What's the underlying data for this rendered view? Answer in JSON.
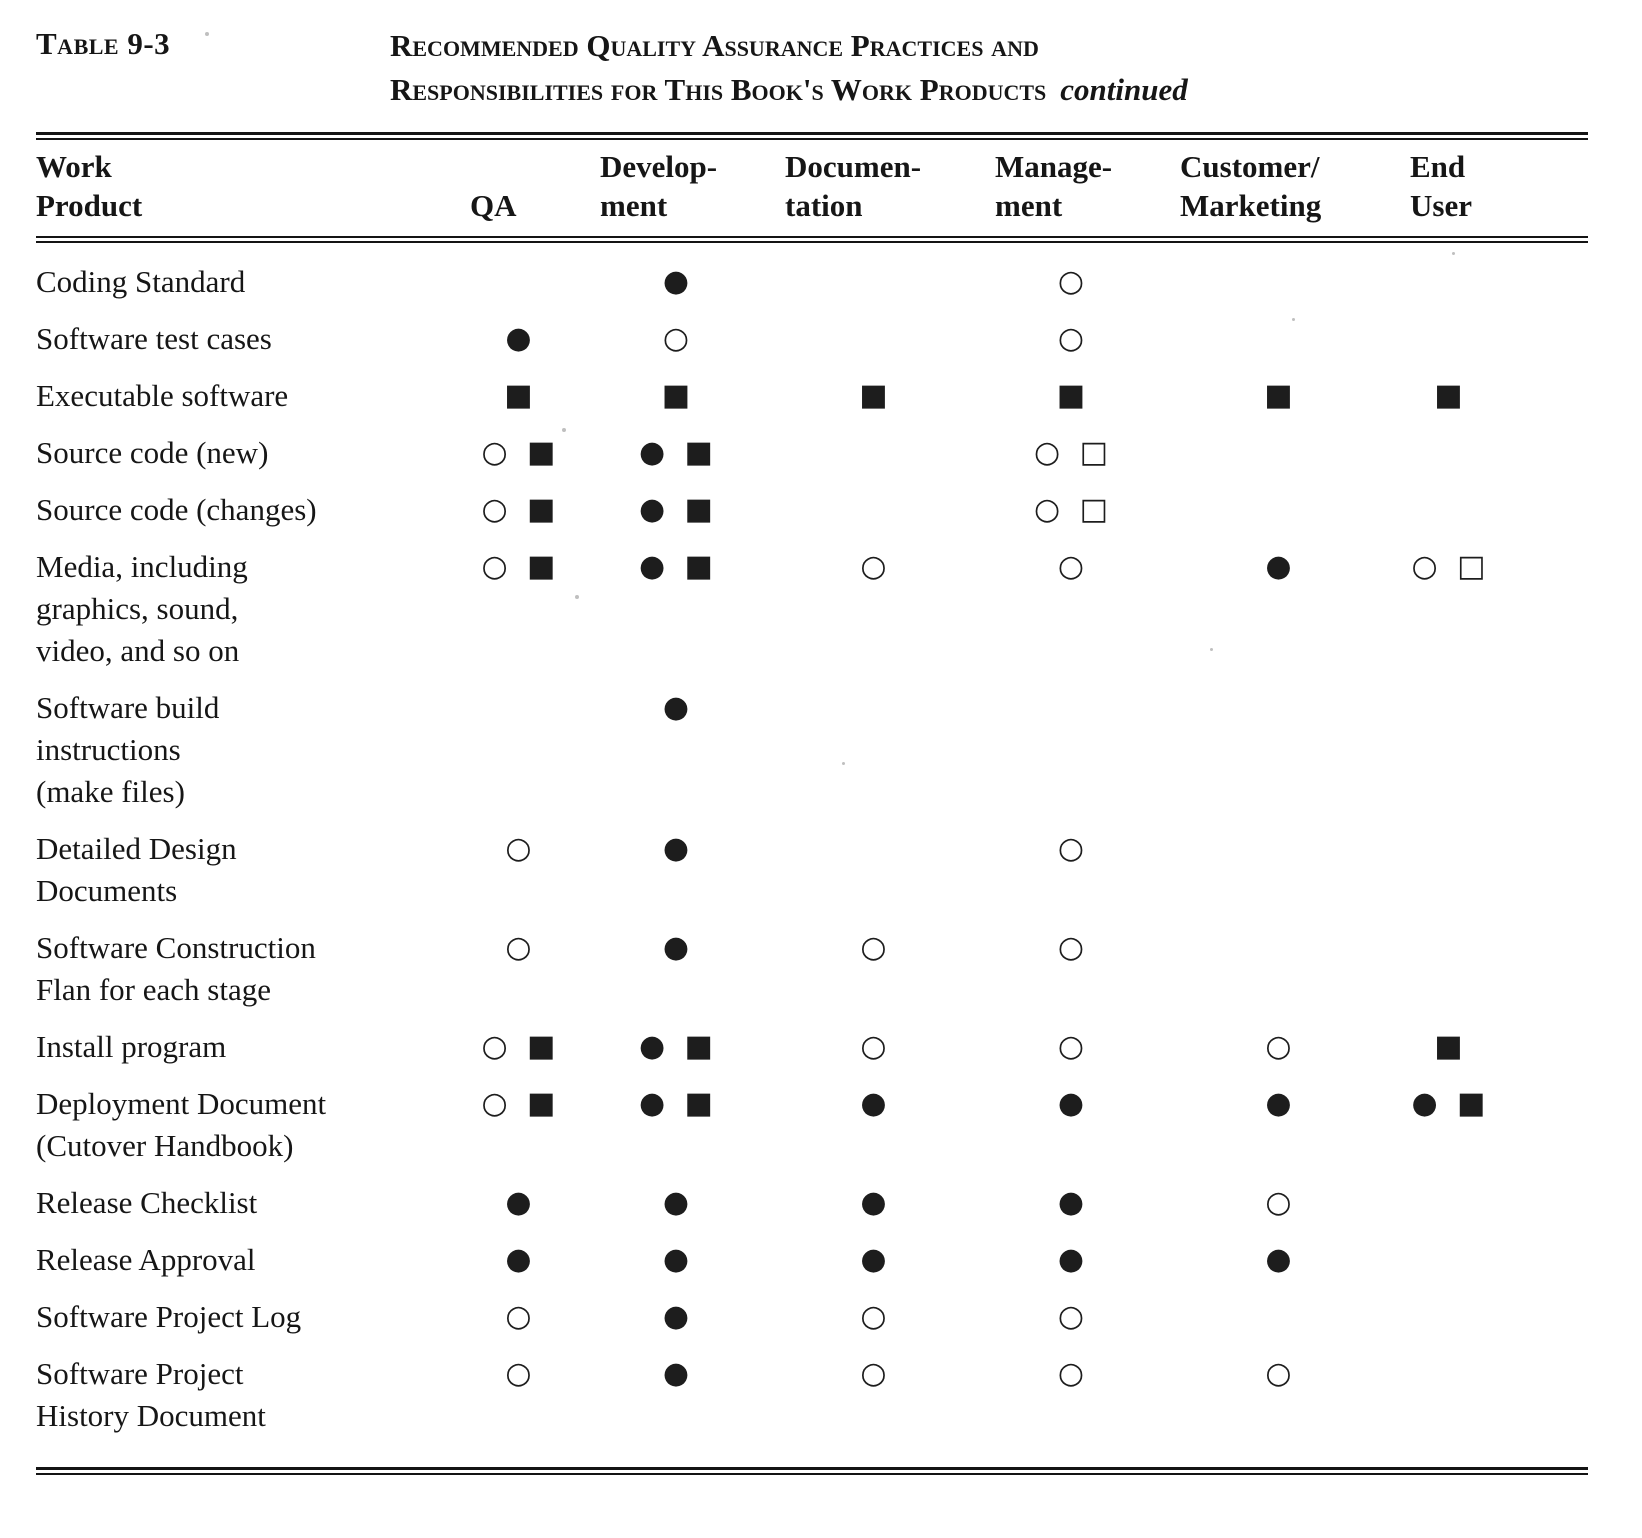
{
  "page": {
    "label": "Table 9-3",
    "title_line1": "Recommended Quality Assurance Practices and",
    "title_line2": "Responsibilities for This Book's Work Products",
    "continued": "continued"
  },
  "table": {
    "headers": [
      {
        "line1": "Work",
        "line2": "Product"
      },
      {
        "line1": "",
        "line2": "QA"
      },
      {
        "line1": "Develop-",
        "line2": "ment"
      },
      {
        "line1": "Documen-",
        "line2": "tation"
      },
      {
        "line1": "Manage-",
        "line2": "ment"
      },
      {
        "line1": "Customer/",
        "line2": "Marketing"
      },
      {
        "line1": "End",
        "line2": "User"
      }
    ],
    "legend": {
      "filled_circle": "●",
      "open_circle": "○",
      "filled_square": "■",
      "open_square": "□"
    },
    "rows": [
      {
        "product": "Coding Standard",
        "cells": [
          "",
          "●",
          "",
          "○",
          "",
          ""
        ]
      },
      {
        "product": "Software test cases",
        "cells": [
          "●",
          "○",
          "",
          "○",
          "",
          ""
        ]
      },
      {
        "product": "Executable software",
        "cells": [
          "■",
          "■",
          "■",
          "■",
          "■",
          "■"
        ]
      },
      {
        "product": "Source code (new)",
        "cells": [
          "○ ■",
          "● ■",
          "",
          "○ □",
          "",
          ""
        ]
      },
      {
        "product": "Source code (changes)",
        "cells": [
          "○ ■",
          "● ■",
          "",
          "○ □",
          "",
          ""
        ]
      },
      {
        "product": "Media, including\ngraphics, sound,\nvideo, and so on",
        "cells": [
          "○ ■",
          "● ■",
          "○",
          "○",
          "●",
          "○ □"
        ]
      },
      {
        "product": "Software build\ninstructions\n(make files)",
        "cells": [
          "",
          "●",
          "",
          "",
          "",
          ""
        ]
      },
      {
        "product": "Detailed Design\nDocuments",
        "cells": [
          "○",
          "●",
          "",
          "○",
          "",
          ""
        ]
      },
      {
        "product": "Software Construction\nFlan for each stage",
        "cells": [
          "○",
          "●",
          "○",
          "○",
          "",
          ""
        ]
      },
      {
        "product": "Install program",
        "cells": [
          "○ ■",
          "● ■",
          "○",
          "○",
          "○",
          "■"
        ]
      },
      {
        "product": "Deployment Document\n(Cutover Handbook)",
        "cells": [
          "○ ■",
          "● ■",
          "●",
          "●",
          "●",
          "● ■"
        ]
      },
      {
        "product": "Release Checklist",
        "cells": [
          "●",
          "●",
          "●",
          "●",
          "○",
          ""
        ]
      },
      {
        "product": "Release Approval",
        "cells": [
          "●",
          "●",
          "●",
          "●",
          "●",
          ""
        ]
      },
      {
        "product": "Software Project Log",
        "cells": [
          "○",
          "●",
          "○",
          "○",
          "",
          ""
        ]
      },
      {
        "product": "Software Project\nHistory Document",
        "cells": [
          "○",
          "●",
          "○",
          "○",
          "○",
          ""
        ]
      }
    ]
  }
}
